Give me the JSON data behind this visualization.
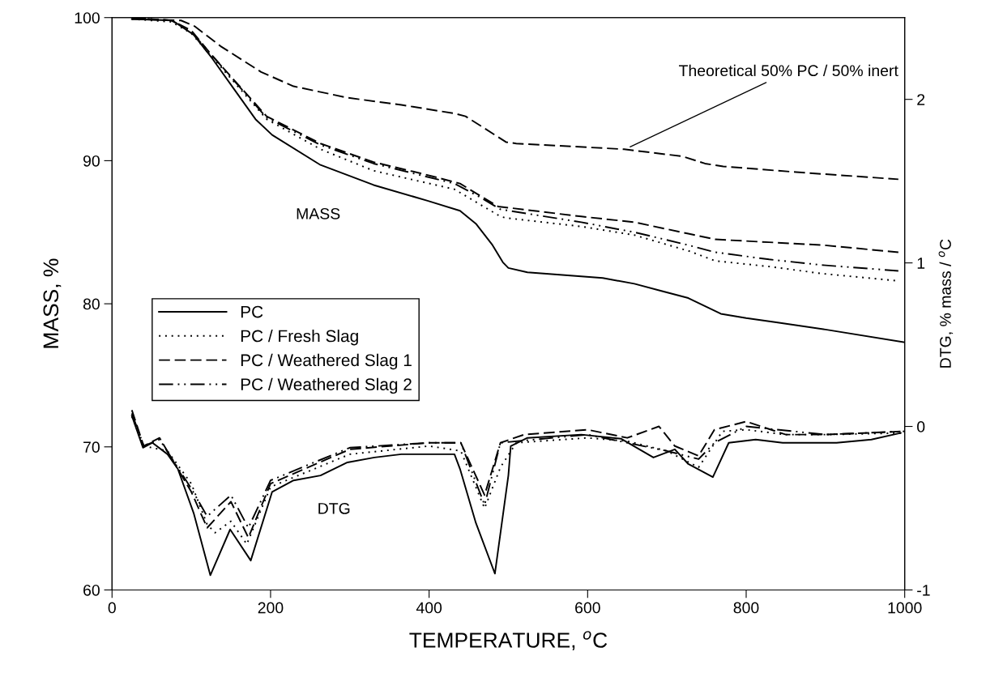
{
  "chart_data": {
    "type": "line",
    "xlabel": "TEMPERATURE, $^{o}$C",
    "ylabel": "MASS, %",
    "y2label": "DTG, % mass / $^{o}$C",
    "xlim": [
      0,
      1000
    ],
    "xticks": [
      0,
      200,
      400,
      600,
      800,
      1000
    ],
    "ylim": [
      60,
      100
    ],
    "yticks": [
      60,
      70,
      80,
      90,
      100
    ],
    "y2lim": [
      -1,
      2.5
    ],
    "y2ticks": [
      {
        "value": -1,
        "label": "-1"
      },
      0,
      1,
      2
    ],
    "grid": false,
    "legend": "left",
    "marker": "none",
    "annotations": [
      {
        "text": "Theoretical 50% PC / 50% inert",
        "x": 651,
        "y": 90.9
      },
      "MASS",
      "DTG"
    ],
    "series": [
      {
        "name": "PC",
        "color": "#000000",
        "line_style": "solid",
        "x": [
          25,
          76,
          103,
          127,
          154,
          181,
          202,
          263,
          330,
          398,
          439,
          459,
          480,
          493,
          500,
          524,
          619,
          659,
          693,
          727,
          768,
          800,
          838,
          900,
          1000
        ],
        "values": [
          99.9,
          99.8,
          98.8,
          97.1,
          95.0,
          92.9,
          91.8,
          89.7,
          88.3,
          87.2,
          86.5,
          85.6,
          84.1,
          82.9,
          82.5,
          82.2,
          81.8,
          81.4,
          80.9,
          80.4,
          79.3,
          79.0,
          78.7,
          78.2,
          77.3
        ]
      },
      {
        "name": "PC / Fresh Slag",
        "color": "#000000",
        "line_style": "dotted",
        "x": [
          25,
          75,
          100,
          127,
          195,
          263,
          330,
          432,
          490,
          497,
          592,
          659,
          727,
          761,
          829,
          897,
          992
        ],
        "values": [
          99.9,
          99.7,
          98.9,
          97.2,
          92.9,
          90.8,
          89.3,
          88.0,
          86.1,
          86.0,
          85.4,
          84.8,
          83.7,
          83.0,
          82.6,
          82.1,
          81.6
        ]
      },
      {
        "name": "PC / Weathered Slag 1",
        "color": "#000000",
        "line_style": "dashed",
        "x": [
          25,
          75,
          100,
          127,
          195,
          263,
          330,
          398,
          439,
          466,
          487,
          592,
          659,
          727,
          761,
          829,
          897,
          992
        ],
        "values": [
          100,
          99.8,
          99.1,
          97.3,
          93.1,
          91.2,
          89.9,
          89.0,
          88.4,
          87.5,
          86.8,
          86.1,
          85.7,
          84.9,
          84.5,
          84.3,
          84.1,
          83.6
        ]
      },
      {
        "name": "PC / Weathered Slag 2",
        "color": "#000000",
        "line_style": "dashdot",
        "x": [
          25,
          75,
          100,
          127,
          195,
          263,
          330,
          432,
          466,
          490,
          592,
          659,
          727,
          761,
          829,
          897,
          992
        ],
        "values": [
          100,
          99.8,
          99.0,
          97.3,
          93.0,
          91.1,
          89.8,
          88.4,
          87.4,
          86.6,
          85.7,
          85.0,
          84.1,
          83.6,
          83.1,
          82.7,
          82.3
        ]
      },
      {
        "color": "#000000",
        "line_style": "dashed",
        "x": [
          25,
          87,
          104,
          137,
          188,
          229,
          297,
          365,
          432,
          446,
          466,
          497,
          510,
          646,
          720,
          748,
          771,
          863,
          992
        ],
        "values": [
          99.9,
          99.8,
          99.4,
          98.0,
          96.2,
          95.2,
          94.4,
          93.9,
          93.3,
          93.1,
          92.4,
          91.3,
          91.2,
          90.8,
          90.3,
          89.8,
          89.6,
          89.2,
          88.7
        ]
      },
      {
        "axis": "y2",
        "color": "#000000",
        "line_style": "solid",
        "x": [
          25,
          39,
          51,
          70,
          83,
          103,
          124,
          149,
          175,
          202,
          229,
          263,
          297,
          331,
          365,
          432,
          439,
          459,
          483,
          500,
          503,
          524,
          592,
          642,
          683,
          710,
          727,
          758,
          778,
          812,
          846,
          914,
          958,
          995
        ],
        "values": [
          0.065,
          -0.13,
          -0.1,
          -0.17,
          -0.26,
          -0.53,
          -0.91,
          -0.63,
          -0.82,
          -0.4,
          -0.33,
          -0.3,
          -0.22,
          -0.19,
          -0.17,
          -0.17,
          -0.26,
          -0.59,
          -0.9,
          -0.3,
          -0.12,
          -0.07,
          -0.05,
          -0.075,
          -0.19,
          -0.14,
          -0.23,
          -0.31,
          -0.1,
          -0.08,
          -0.1,
          -0.1,
          -0.08,
          -0.04
        ]
      },
      {
        "axis": "y2",
        "color": "#000000",
        "line_style": "dotted",
        "x": [
          25,
          40,
          70,
          100,
          120,
          130,
          150,
          170,
          200,
          300,
          400,
          440,
          470,
          490,
          510,
          600,
          650,
          700,
          740,
          770,
          800,
          850,
          900,
          1000
        ],
        "values": [
          0.06,
          -0.12,
          -0.15,
          -0.35,
          -0.6,
          -0.65,
          -0.58,
          -0.72,
          -0.37,
          -0.17,
          -0.12,
          -0.15,
          -0.5,
          -0.25,
          -0.1,
          -0.07,
          -0.09,
          -0.15,
          -0.25,
          -0.03,
          -0.02,
          -0.05,
          -0.05,
          -0.04
        ]
      },
      {
        "axis": "y2",
        "color": "#000000",
        "line_style": "dashed",
        "x": [
          25,
          40,
          60,
          100,
          120,
          150,
          172,
          200,
          300,
          400,
          440,
          470,
          490,
          520,
          600,
          650,
          690,
          710,
          740,
          760,
          800,
          850,
          900,
          1000
        ],
        "values": [
          0.1,
          -0.12,
          -0.07,
          -0.4,
          -0.62,
          -0.46,
          -0.68,
          -0.35,
          -0.14,
          -0.1,
          -0.1,
          -0.42,
          -0.1,
          -0.05,
          -0.02,
          -0.07,
          0.0,
          -0.12,
          -0.18,
          -0.02,
          0.03,
          -0.05,
          -0.05,
          -0.03
        ]
      },
      {
        "axis": "y2",
        "color": "#000000",
        "line_style": "dashdot",
        "x": [
          25,
          40,
          60,
          100,
          120,
          150,
          172,
          200,
          300,
          400,
          440,
          470,
          490,
          600,
          700,
          740,
          760,
          800,
          900,
          1000
        ],
        "values": [
          0.08,
          -0.12,
          -0.08,
          -0.38,
          -0.55,
          -0.42,
          -0.62,
          -0.33,
          -0.13,
          -0.1,
          -0.1,
          -0.48,
          -0.1,
          -0.05,
          -0.15,
          -0.2,
          -0.1,
          0.0,
          -0.05,
          -0.03
        ]
      }
    ]
  }
}
